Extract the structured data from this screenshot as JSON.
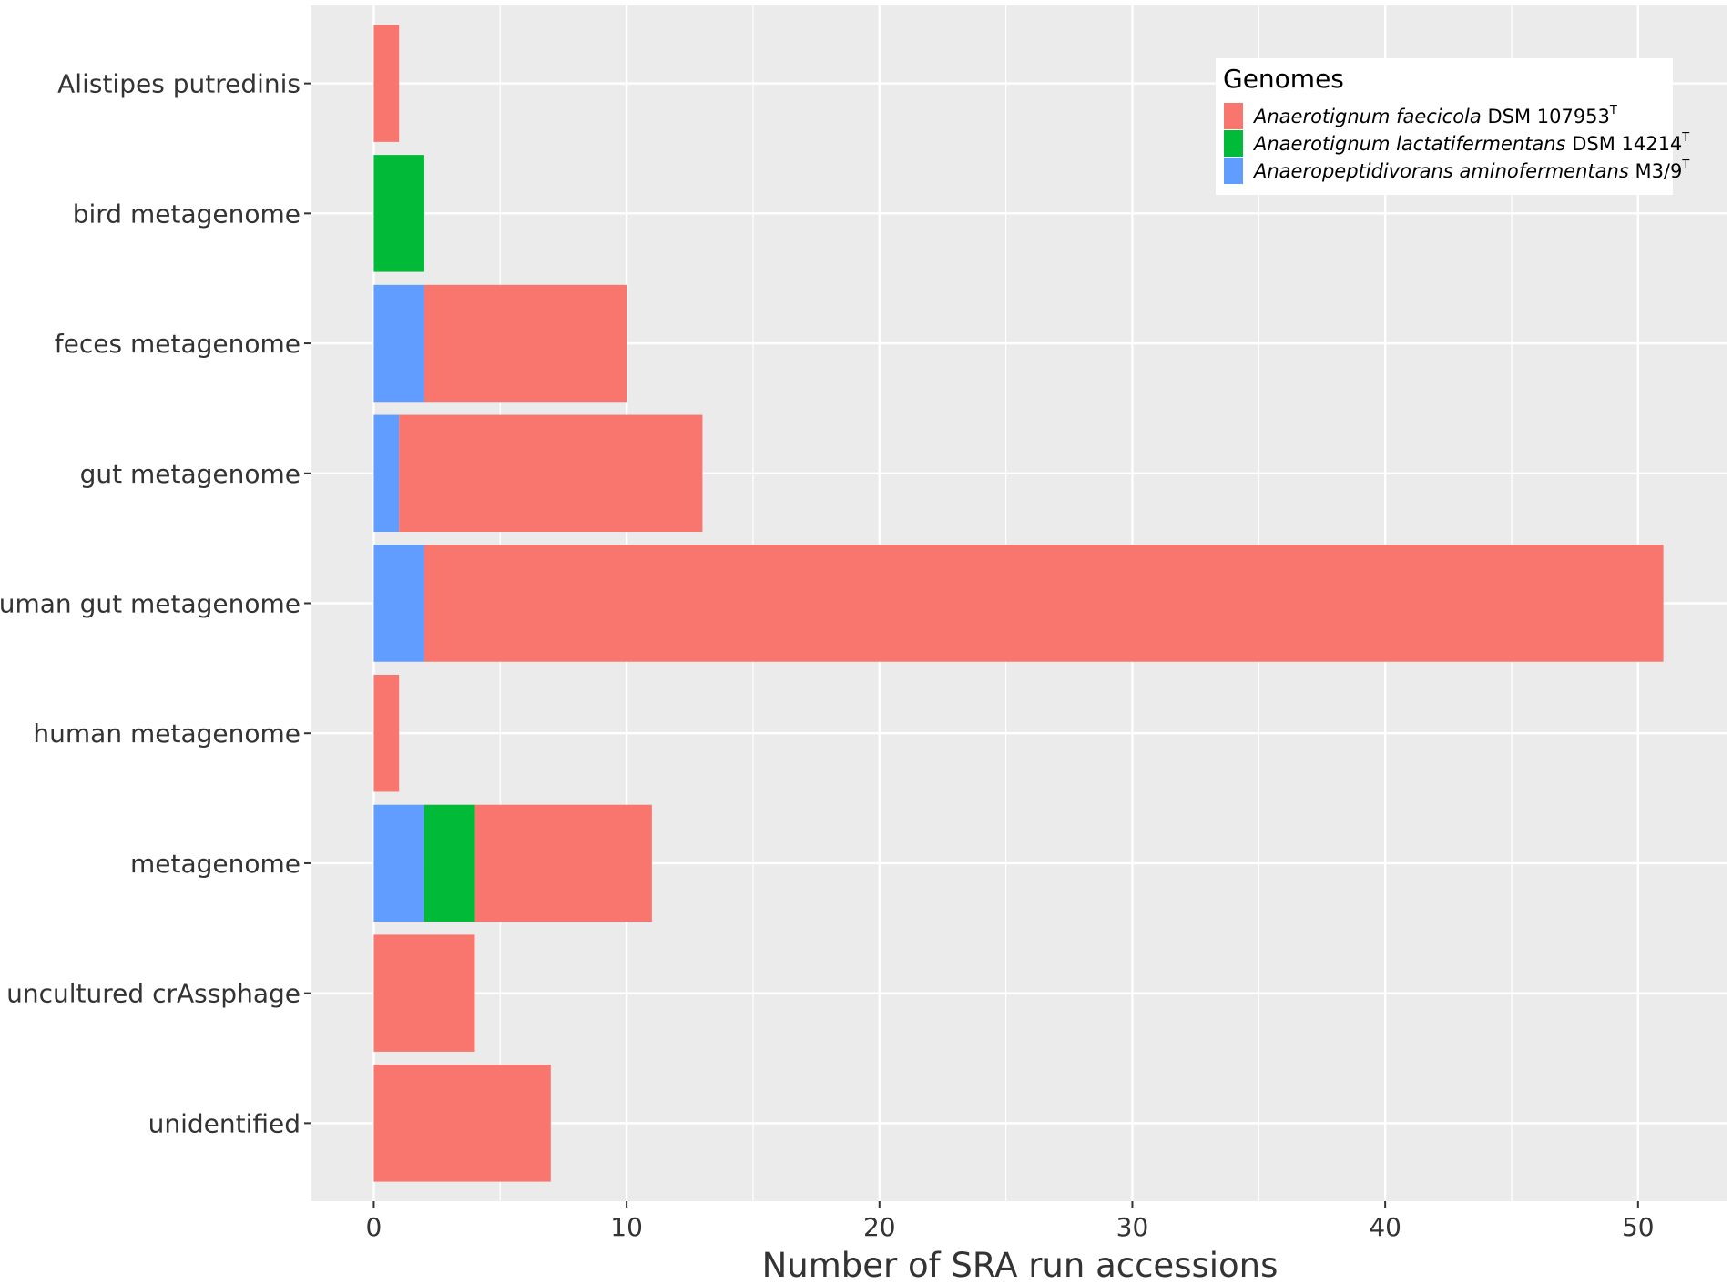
{
  "chart_data": {
    "type": "bar",
    "orientation": "horizontal",
    "stacked": true,
    "title": "",
    "xlabel": "Number of SRA run accessions",
    "ylabel": "",
    "xlim": [
      -2.5,
      53.5
    ],
    "xticks": [
      0,
      10,
      20,
      30,
      40,
      50
    ],
    "grid": true,
    "legend_position": "top-right",
    "legend_title": "Genomes",
    "categories": [
      "unidentified",
      "uncultured crAssphage",
      "metagenome",
      "human metagenome",
      "human gut metagenome",
      "gut metagenome",
      "feces metagenome",
      "bird metagenome",
      "Alistipes putredinis"
    ],
    "series": [
      {
        "name": "Anaeropeptidivorans aminofermentans M3/9T",
        "name_italic": "Anaeropeptidivorans aminofermentans",
        "name_plain": " M3/9",
        "name_sup": "T",
        "color": "#619CFF",
        "values": [
          0,
          0,
          2,
          0,
          2,
          1,
          2,
          0,
          0
        ]
      },
      {
        "name": "Anaerotignum lactatifermentans DSM 14214T",
        "name_italic": "Anaerotignum lactatifermentans",
        "name_plain": " DSM 14214",
        "name_sup": "T",
        "color": "#00BA38",
        "values": [
          0,
          0,
          2,
          0,
          0,
          0,
          0,
          2,
          0
        ]
      },
      {
        "name": "Anaerotignum faecicola DSM 107953T",
        "name_italic": "Anaerotignum faecicola",
        "name_plain": " DSM 107953",
        "name_sup": "T",
        "color": "#F8766D",
        "values": [
          7,
          4,
          7,
          1,
          49,
          12,
          8,
          0,
          1
        ]
      }
    ],
    "legend_order": [
      2,
      1,
      0
    ]
  },
  "colors": {
    "panel_background": "#EBEBEB",
    "grid": "#FFFFFF",
    "text": "#333333"
  }
}
